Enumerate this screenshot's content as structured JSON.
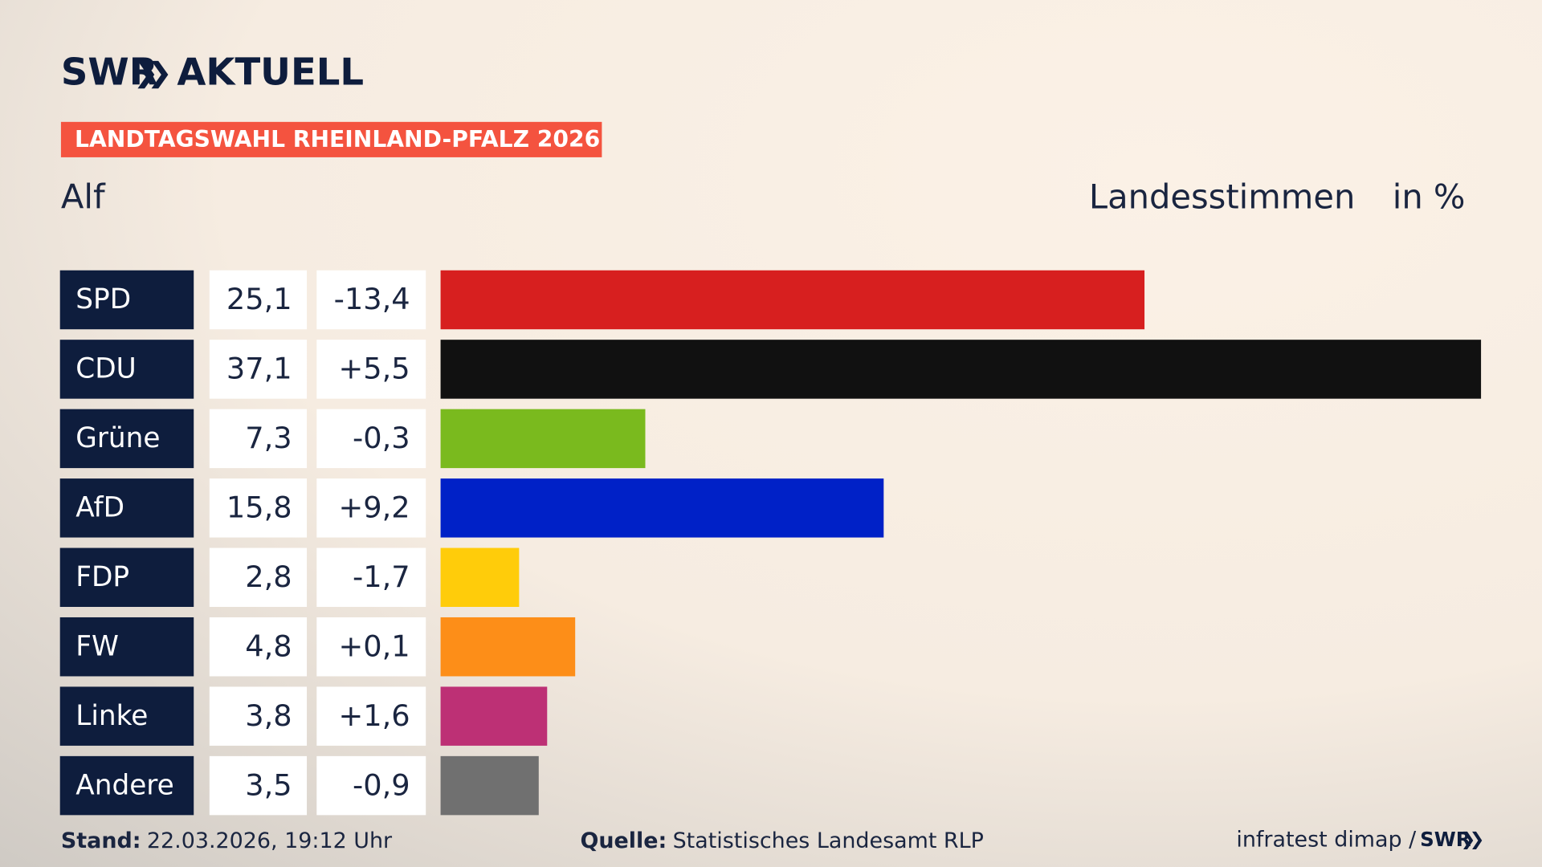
{
  "header": {
    "logo": "SWR",
    "logo_suffix": "AKTUELL",
    "tag": "LANDTAGSWAHL RHEINLAND-PFALZ 2026"
  },
  "chart_data": {
    "type": "bar",
    "orientation": "horizontal",
    "title": "Alf",
    "subtitle": "Landesstimmen",
    "unit": "in %",
    "categories": [
      "SPD",
      "CDU",
      "Grüne",
      "AfD",
      "FDP",
      "FW",
      "Linke",
      "Andere"
    ],
    "values": [
      25.1,
      37.1,
      7.3,
      15.8,
      2.8,
      4.8,
      3.8,
      3.5
    ],
    "value_labels": [
      "25,1",
      "37,1",
      "7,3",
      "15,8",
      "2,8",
      "4,8",
      "3,8",
      "3,5"
    ],
    "changes": [
      "-13,4",
      "+5,5",
      "-0,3",
      "+9,2",
      "-1,7",
      "+0,1",
      "+1,6",
      "-0,9"
    ],
    "colors": [
      "#d71f1f",
      "#111111",
      "#7aba1e",
      "#0021c7",
      "#ffcc0a",
      "#fd8e18",
      "#bd3075",
      "#707070"
    ]
  },
  "footer": {
    "stand_label": "Stand:",
    "stand": "22.03.2026, 19:12 Uhr",
    "source_label": "Quelle:",
    "source": "Statistisches Landesamt RLP",
    "credit": "infratest dimap /",
    "credit_logo": "SWR"
  }
}
